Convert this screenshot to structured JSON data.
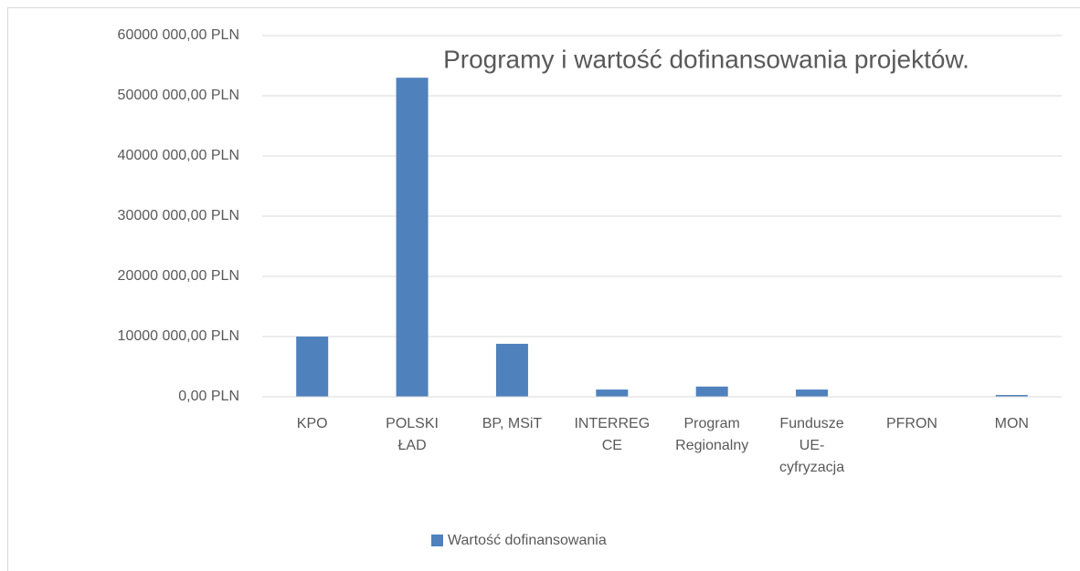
{
  "chart_data": {
    "type": "bar",
    "title": "Programy i wartość dofinansowania projektów.",
    "categories": [
      "KPO",
      "POLSKI ŁAD",
      "BP, MSiT",
      "INTERREG CE",
      "Program Regionalny",
      "Fundusze UE-cyfryzacja",
      "PFRON",
      "MON"
    ],
    "series": [
      {
        "name": "Wartość dofinansowania",
        "color": "#4f81bd",
        "values": [
          10000000,
          53000000,
          8800000,
          1200000,
          1700000,
          1200000,
          50000,
          300000
        ]
      }
    ],
    "ylim": [
      0,
      60000000
    ],
    "yticks": [
      {
        "value": 0,
        "label": "0,00 PLN"
      },
      {
        "value": 10000000,
        "label": "10000 000,00 PLN"
      },
      {
        "value": 20000000,
        "label": "20000 000,00 PLN"
      },
      {
        "value": 30000000,
        "label": "30000 000,00 PLN"
      },
      {
        "value": 40000000,
        "label": "40000 000,00 PLN"
      },
      {
        "value": 50000000,
        "label": "50000 000,00 PLN"
      },
      {
        "value": 60000000,
        "label": "60000 000,00 PLN"
      }
    ],
    "grid": true,
    "legend": "bottom"
  }
}
